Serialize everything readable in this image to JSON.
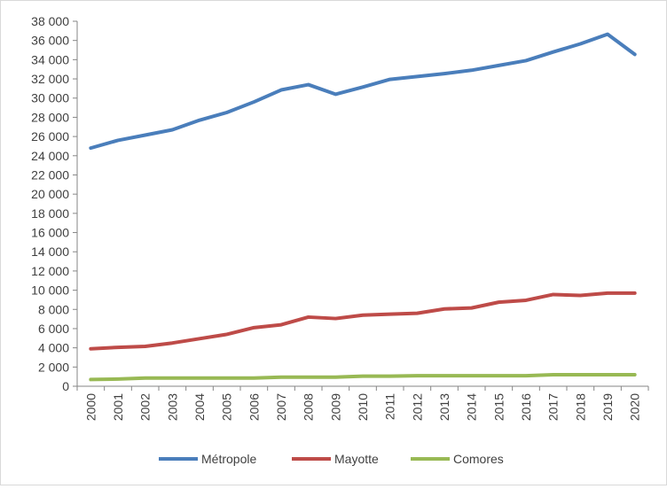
{
  "chart_data": {
    "type": "line",
    "title": "",
    "xlabel": "",
    "ylabel": "",
    "ylim": [
      0,
      38000
    ],
    "ytick_step": 2000,
    "ytick_labels": [
      "0",
      "2 000",
      "4 000",
      "6 000",
      "8 000",
      "10 000",
      "12 000",
      "14 000",
      "16 000",
      "18 000",
      "20 000",
      "22 000",
      "24 000",
      "26 000",
      "28 000",
      "30 000",
      "32 000",
      "34 000",
      "36 000",
      "38 000"
    ],
    "grid": false,
    "legend_position": "bottom",
    "categories": [
      "2000",
      "2001",
      "2002",
      "2003",
      "2004",
      "2005",
      "2006",
      "2007",
      "2008",
      "2009",
      "2010",
      "2011",
      "2012",
      "2013",
      "2014",
      "2015",
      "2016",
      "2017",
      "2018",
      "2019",
      "2020"
    ],
    "series": [
      {
        "name": "Métropole",
        "color": "#4a7ebb",
        "values": [
          24800,
          25600,
          26150,
          26700,
          27700,
          28500,
          29600,
          30850,
          31400,
          30400,
          31150,
          31950,
          32250,
          32550,
          32900,
          33400,
          33900,
          34800,
          35650,
          36650,
          34550
        ]
      },
      {
        "name": "Mayotte",
        "color": "#be4b48",
        "values": [
          3900,
          4050,
          4150,
          4500,
          4950,
          5400,
          6100,
          6400,
          7200,
          7050,
          7400,
          7500,
          7600,
          8050,
          8150,
          8750,
          8950,
          9550,
          9450,
          9700,
          9700
        ]
      },
      {
        "name": "Comores",
        "color": "#98b954",
        "values": [
          700,
          750,
          850,
          850,
          850,
          850,
          850,
          950,
          950,
          950,
          1050,
          1050,
          1100,
          1100,
          1100,
          1100,
          1100,
          1200,
          1200,
          1200,
          1200
        ]
      }
    ]
  }
}
